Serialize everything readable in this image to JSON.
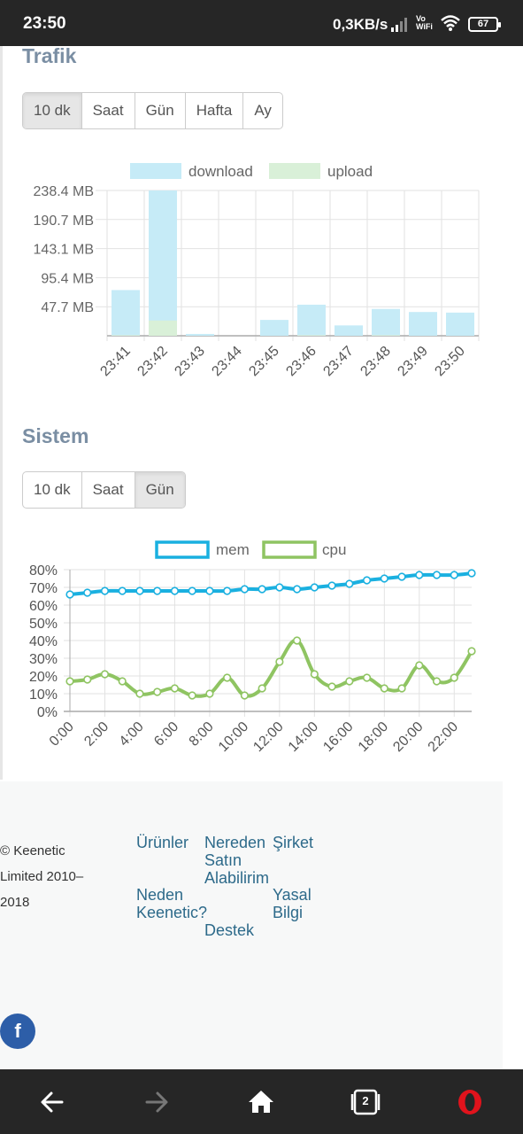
{
  "status_bar": {
    "time": "23:50",
    "speed": "0,3KB/s",
    "vowifi_top": "Vo",
    "vowifi_bottom": "WiFi",
    "battery": "67"
  },
  "traffic": {
    "title": "Trafik",
    "tabs": [
      {
        "label": "10 dk",
        "active": true
      },
      {
        "label": "Saat",
        "active": false
      },
      {
        "label": "Gün",
        "active": false
      },
      {
        "label": "Hafta",
        "active": false
      },
      {
        "label": "Ay",
        "active": false
      }
    ]
  },
  "system": {
    "title": "Sistem",
    "tabs": [
      {
        "label": "10 dk",
        "active": false
      },
      {
        "label": "Saat",
        "active": false
      },
      {
        "label": "Gün",
        "active": true
      }
    ]
  },
  "chart_data": [
    {
      "type": "bar",
      "categories": [
        "23:41",
        "23:42",
        "23:43",
        "23:44",
        "23:45",
        "23:46",
        "23:47",
        "23:48",
        "23:49",
        "23:50"
      ],
      "series": [
        {
          "name": "download",
          "color": "#c6ebf7",
          "values": [
            75,
            238.4,
            3,
            0,
            26,
            51,
            17,
            44,
            39,
            38
          ]
        },
        {
          "name": "upload",
          "color": "#d9f0d8",
          "values": [
            1,
            25,
            0,
            0,
            0,
            1,
            0,
            1,
            0,
            0
          ]
        }
      ],
      "yticks": [
        "47.7 MB",
        "95.4 MB",
        "143.1 MB",
        "190.7 MB",
        "238.4 MB"
      ],
      "ylim": [
        0,
        238.4
      ],
      "legend": "top"
    },
    {
      "type": "line",
      "x": [
        "0:00",
        "1:00",
        "2:00",
        "3:00",
        "4:00",
        "5:00",
        "6:00",
        "7:00",
        "8:00",
        "9:00",
        "10:00",
        "11:00",
        "12:00",
        "13:00",
        "14:00",
        "15:00",
        "16:00",
        "17:00",
        "18:00",
        "19:00",
        "20:00",
        "21:00",
        "22:00",
        "23:00"
      ],
      "xticks": [
        "0:00",
        "2:00",
        "4:00",
        "6:00",
        "8:00",
        "10:00",
        "12:00",
        "14:00",
        "16:00",
        "18:00",
        "20:00",
        "22:00"
      ],
      "series": [
        {
          "name": "mem",
          "color": "#1ab0e0",
          "values": [
            66,
            67,
            68,
            68,
            68,
            68,
            68,
            68,
            68,
            68,
            69,
            69,
            70,
            69,
            70,
            71,
            72,
            74,
            75,
            76,
            77,
            77,
            77,
            78
          ]
        },
        {
          "name": "cpu",
          "color": "#8fc462",
          "values": [
            17,
            18,
            21,
            17,
            10,
            11,
            13,
            9,
            10,
            19,
            9,
            13,
            28,
            40,
            21,
            14,
            17,
            19,
            13,
            13,
            26,
            17,
            19,
            34
          ]
        }
      ],
      "yticks": [
        "0%",
        "10%",
        "20%",
        "30%",
        "40%",
        "50%",
        "60%",
        "70%",
        "80%"
      ],
      "ylim": [
        0,
        80
      ],
      "legend": "top"
    }
  ],
  "footer": {
    "copyright_lines": [
      "© Keenetic",
      "Limited 2010–",
      "2018"
    ],
    "links": {
      "urunler": "Ürünler",
      "nereden_1": "Nereden",
      "nereden_2": "Satın",
      "nereden_3": "Alabilirim",
      "sirket": "Şirket",
      "neden_1": "Neden",
      "neden_2": "Keenetic?",
      "yasal_1": "Yasal",
      "yasal_2": "Bilgi",
      "destek": "Destek"
    },
    "facebook": "f"
  },
  "nav": {
    "tabs_count": "2"
  }
}
